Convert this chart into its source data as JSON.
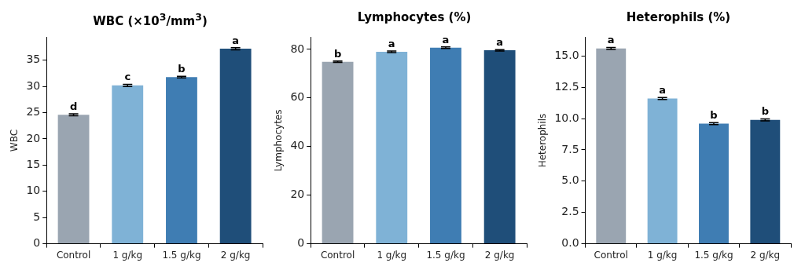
{
  "chart_data": [
    {
      "type": "bar",
      "title": "WBC (×10$^{3}$/mm$^{3}$)",
      "ylabel": "WBC",
      "categories": [
        "Control",
        "1 g/kg",
        "1.5 g/kg",
        "2 g/kg"
      ],
      "values": [
        24.6,
        30.2,
        31.8,
        37.2
      ],
      "errors": [
        0.2,
        0.2,
        0.15,
        0.2
      ],
      "colors": [
        "#9aa5b1",
        "#7fb2d6",
        "#3f7db3",
        "#1f4e79"
      ],
      "ylim": [
        0,
        39.4
      ],
      "yticks": [
        0,
        5,
        10,
        15,
        20,
        25,
        30,
        35
      ],
      "grid": false,
      "annotations": [
        {
          "text": "d",
          "x": "Control",
          "y": 24.8
        },
        {
          "text": "c",
          "x": "1 g/kg",
          "y": 30.4
        },
        {
          "text": "b",
          "x": "1.5 g/kg",
          "y": 31.95
        },
        {
          "text": "a",
          "x": "2 g/kg",
          "y": 37.4
        }
      ]
    },
    {
      "type": "bar",
      "title": "Lymphocytes (%)",
      "ylabel": "Lymphocytes",
      "categories": [
        "Control",
        "1 g/kg",
        "1.5 g/kg",
        "2 g/kg"
      ],
      "values": [
        74.9,
        79.0,
        80.7,
        79.6
      ],
      "errors": [
        0.3,
        0.3,
        0.3,
        0.3
      ],
      "colors": [
        "#9aa5b1",
        "#7fb2d6",
        "#3f7db3",
        "#1f4e79"
      ],
      "ylim": [
        0,
        85
      ],
      "yticks": [
        0,
        20,
        40,
        60,
        80
      ],
      "grid": false,
      "annotations": [
        {
          "text": "b",
          "x": "Control",
          "y": 75.2
        },
        {
          "text": "a",
          "x": "1 g/kg",
          "y": 79.3
        },
        {
          "text": "a",
          "x": "1.5 g/kg",
          "y": 81.0
        },
        {
          "text": "a",
          "x": "2 g/kg",
          "y": 79.9
        }
      ]
    },
    {
      "type": "bar",
      "title": "Heterophils (%)",
      "ylabel": "Heterophils",
      "categories": [
        "Control",
        "1 g/kg",
        "1.5 g/kg",
        "2 g/kg"
      ],
      "values": [
        15.6,
        11.6,
        9.6,
        9.9
      ],
      "errors": [
        0.08,
        0.08,
        0.08,
        0.08
      ],
      "colors": [
        "#9aa5b1",
        "#7fb2d6",
        "#3f7db3",
        "#1f4e79"
      ],
      "ylim": [
        0,
        16.5
      ],
      "yticks": [
        {
          "value": 0,
          "label": "0.0"
        },
        {
          "value": 2.5,
          "label": "2.5"
        },
        {
          "value": 5,
          "label": "5.0"
        },
        {
          "value": 7.5,
          "label": "7.5"
        },
        {
          "value": 10,
          "label": "10.0"
        },
        {
          "value": 12.5,
          "label": "12.5"
        },
        {
          "value": 15,
          "label": "15.0"
        }
      ],
      "grid": false,
      "annotations": [
        {
          "text": "a",
          "x": "Control",
          "y": 15.68
        },
        {
          "text": "a",
          "x": "1 g/kg",
          "y": 11.68
        },
        {
          "text": "b",
          "x": "1.5 g/kg",
          "y": 9.68
        },
        {
          "text": "b",
          "x": "2 g/kg",
          "y": 9.98
        }
      ]
    }
  ]
}
